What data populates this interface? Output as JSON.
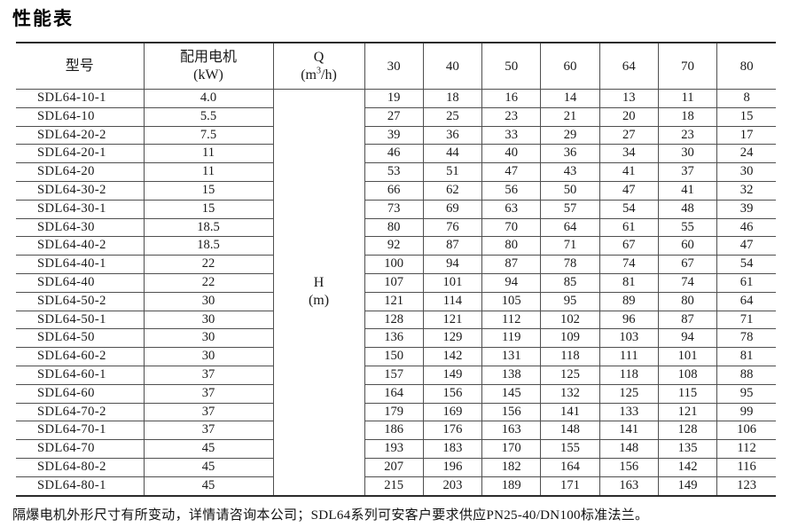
{
  "title": "性能表",
  "table": {
    "header": {
      "model": "型号",
      "motor_line1": "配用电机",
      "motor_line2": "(kW)",
      "q_line1": "Q",
      "q_unit_pre": "(m",
      "q_unit_sup": "3",
      "q_unit_post": "/h)",
      "flow_columns": [
        "30",
        "40",
        "50",
        "60",
        "64",
        "70",
        "80"
      ]
    },
    "h_label_line1": "H",
    "h_label_line2": "(m)",
    "rows": [
      {
        "model": "SDL64-10-1",
        "power": "4.0",
        "values": [
          "19",
          "18",
          "16",
          "14",
          "13",
          "11",
          "8"
        ]
      },
      {
        "model": "SDL64-10",
        "power": "5.5",
        "values": [
          "27",
          "25",
          "23",
          "21",
          "20",
          "18",
          "15"
        ]
      },
      {
        "model": "SDL64-20-2",
        "power": "7.5",
        "values": [
          "39",
          "36",
          "33",
          "29",
          "27",
          "23",
          "17"
        ]
      },
      {
        "model": "SDL64-20-1",
        "power": "11",
        "values": [
          "46",
          "44",
          "40",
          "36",
          "34",
          "30",
          "24"
        ]
      },
      {
        "model": "SDL64-20",
        "power": "11",
        "values": [
          "53",
          "51",
          "47",
          "43",
          "41",
          "37",
          "30"
        ]
      },
      {
        "model": "SDL64-30-2",
        "power": "15",
        "values": [
          "66",
          "62",
          "56",
          "50",
          "47",
          "41",
          "32"
        ]
      },
      {
        "model": "SDL64-30-1",
        "power": "15",
        "values": [
          "73",
          "69",
          "63",
          "57",
          "54",
          "48",
          "39"
        ]
      },
      {
        "model": "SDL64-30",
        "power": "18.5",
        "values": [
          "80",
          "76",
          "70",
          "64",
          "61",
          "55",
          "46"
        ]
      },
      {
        "model": "SDL64-40-2",
        "power": "18.5",
        "values": [
          "92",
          "87",
          "80",
          "71",
          "67",
          "60",
          "47"
        ]
      },
      {
        "model": "SDL64-40-1",
        "power": "22",
        "values": [
          "100",
          "94",
          "87",
          "78",
          "74",
          "67",
          "54"
        ]
      },
      {
        "model": "SDL64-40",
        "power": "22",
        "values": [
          "107",
          "101",
          "94",
          "85",
          "81",
          "74",
          "61"
        ]
      },
      {
        "model": "SDL64-50-2",
        "power": "30",
        "values": [
          "121",
          "114",
          "105",
          "95",
          "89",
          "80",
          "64"
        ]
      },
      {
        "model": "SDL64-50-1",
        "power": "30",
        "values": [
          "128",
          "121",
          "112",
          "102",
          "96",
          "87",
          "71"
        ]
      },
      {
        "model": "SDL64-50",
        "power": "30",
        "values": [
          "136",
          "129",
          "119",
          "109",
          "103",
          "94",
          "78"
        ]
      },
      {
        "model": "SDL64-60-2",
        "power": "30",
        "values": [
          "150",
          "142",
          "131",
          "118",
          "111",
          "101",
          "81"
        ]
      },
      {
        "model": "SDL64-60-1",
        "power": "37",
        "values": [
          "157",
          "149",
          "138",
          "125",
          "118",
          "108",
          "88"
        ]
      },
      {
        "model": "SDL64-60",
        "power": "37",
        "values": [
          "164",
          "156",
          "145",
          "132",
          "125",
          "115",
          "95"
        ]
      },
      {
        "model": "SDL64-70-2",
        "power": "37",
        "values": [
          "179",
          "169",
          "156",
          "141",
          "133",
          "121",
          "99"
        ]
      },
      {
        "model": "SDL64-70-1",
        "power": "37",
        "values": [
          "186",
          "176",
          "163",
          "148",
          "141",
          "128",
          "106"
        ]
      },
      {
        "model": "SDL64-70",
        "power": "45",
        "values": [
          "193",
          "183",
          "170",
          "155",
          "148",
          "135",
          "112"
        ]
      },
      {
        "model": "SDL64-80-2",
        "power": "45",
        "values": [
          "207",
          "196",
          "182",
          "164",
          "156",
          "142",
          "116"
        ]
      },
      {
        "model": "SDL64-80-1",
        "power": "45",
        "values": [
          "215",
          "203",
          "189",
          "171",
          "163",
          "149",
          "123"
        ]
      }
    ]
  },
  "footer": "隔爆电机外形尺寸有所变动，详情请咨询本公司；SDL64系列可安客户要求供应PN25-40/DN100标准法兰。"
}
